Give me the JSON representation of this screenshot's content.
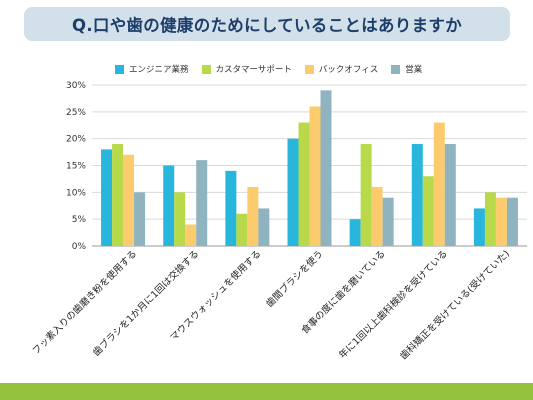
{
  "title": "Q.口や歯の健康のためにしていることはありますか",
  "chart_data": {
    "type": "bar",
    "categories": [
      "フッ素入りの歯磨き粉を使用する",
      "歯ブラシを1か月に1回は交換する",
      "マウスウォッシュを使用する",
      "歯間ブラシを使う",
      "食事の度に歯を磨いている",
      "年に1回以上歯科検診を受けている",
      "歯科矯正を受けている(受けていた)"
    ],
    "series": [
      {
        "name": "エンジニア業務",
        "color": "#29b6dd",
        "values": [
          18,
          15,
          14,
          20,
          5,
          19,
          7
        ]
      },
      {
        "name": "カスタマーサポート",
        "color": "#b8d94a",
        "values": [
          19,
          10,
          6,
          23,
          19,
          13,
          10
        ]
      },
      {
        "name": "バックオフィス",
        "color": "#fbcb6e",
        "values": [
          17,
          4,
          11,
          26,
          11,
          23,
          9
        ]
      },
      {
        "name": "営業",
        "color": "#8fb3bf",
        "values": [
          10,
          16,
          7,
          29,
          9,
          19,
          9
        ]
      }
    ],
    "ylim": [
      0,
      30
    ],
    "yticks": [
      "0%",
      "5%",
      "10%",
      "15%",
      "20%",
      "25%",
      "30%"
    ],
    "grid": true,
    "legend_position": "top"
  }
}
